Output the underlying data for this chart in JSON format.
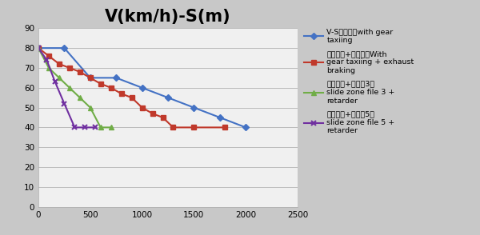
{
  "title": "V(km/h)-S(m)",
  "title_fontsize": 15,
  "xlim": [
    0,
    2500
  ],
  "ylim": [
    0,
    90
  ],
  "yticks": [
    0,
    10,
    20,
    30,
    40,
    50,
    60,
    70,
    80,
    90
  ],
  "xticks": [
    0,
    500,
    1000,
    1500,
    2000,
    2500
  ],
  "fig_facecolor": "#c8c8c8",
  "axes_facecolor": "#f0f0f0",
  "series": [
    {
      "label": "V-S带档滑行with gear\ntaxiing",
      "color": "#4472c4",
      "marker": "D",
      "markersize": 4,
      "linewidth": 1.5,
      "x": [
        0,
        250,
        500,
        750,
        1000,
        1250,
        1500,
        1750,
        2000
      ],
      "y": [
        80,
        80,
        65,
        65,
        60,
        55,
        50,
        45,
        40
      ]
    },
    {
      "label": "带档滑行+排气制动With\ngear taxiing + exhaust\nbraking",
      "color": "#c0392b",
      "marker": "s",
      "markersize": 4,
      "linewidth": 1.5,
      "x": [
        0,
        100,
        200,
        300,
        400,
        500,
        600,
        700,
        800,
        900,
        1000,
        1100,
        1200,
        1300,
        1500,
        1800
      ],
      "y": [
        80,
        76,
        72,
        70,
        68,
        65,
        62,
        60,
        57,
        55,
        50,
        47,
        45,
        40,
        40,
        40
      ]
    },
    {
      "label": "带档滑行+缓速刨3档\nslide zone file 3 +\nretarder",
      "color": "#70ad47",
      "marker": "^",
      "markersize": 4,
      "linewidth": 1.5,
      "x": [
        0,
        100,
        200,
        300,
        400,
        500,
        600,
        700
      ],
      "y": [
        80,
        70,
        65,
        60,
        55,
        50,
        40,
        40
      ]
    },
    {
      "label": "带档滑行+缓速刨5档\nslide zone file 5 +\nretarder",
      "color": "#7030a0",
      "marker": "x",
      "markersize": 5,
      "linewidth": 1.5,
      "x": [
        0,
        80,
        160,
        250,
        350,
        450,
        550
      ],
      "y": [
        80,
        74,
        63,
        52,
        40,
        40,
        40
      ]
    }
  ],
  "legend_labels": [
    "V-S带档滑行with gear\ntaxiing",
    "带档滑行+排气制动With\ngear taxiing + exhaust\nbraking",
    "带档滑行+缓速刨3档\nslide zone file 3 +\nretarder",
    "带档滑行+缓速刨5档\nslide zone file 5 +\nretarder"
  ]
}
